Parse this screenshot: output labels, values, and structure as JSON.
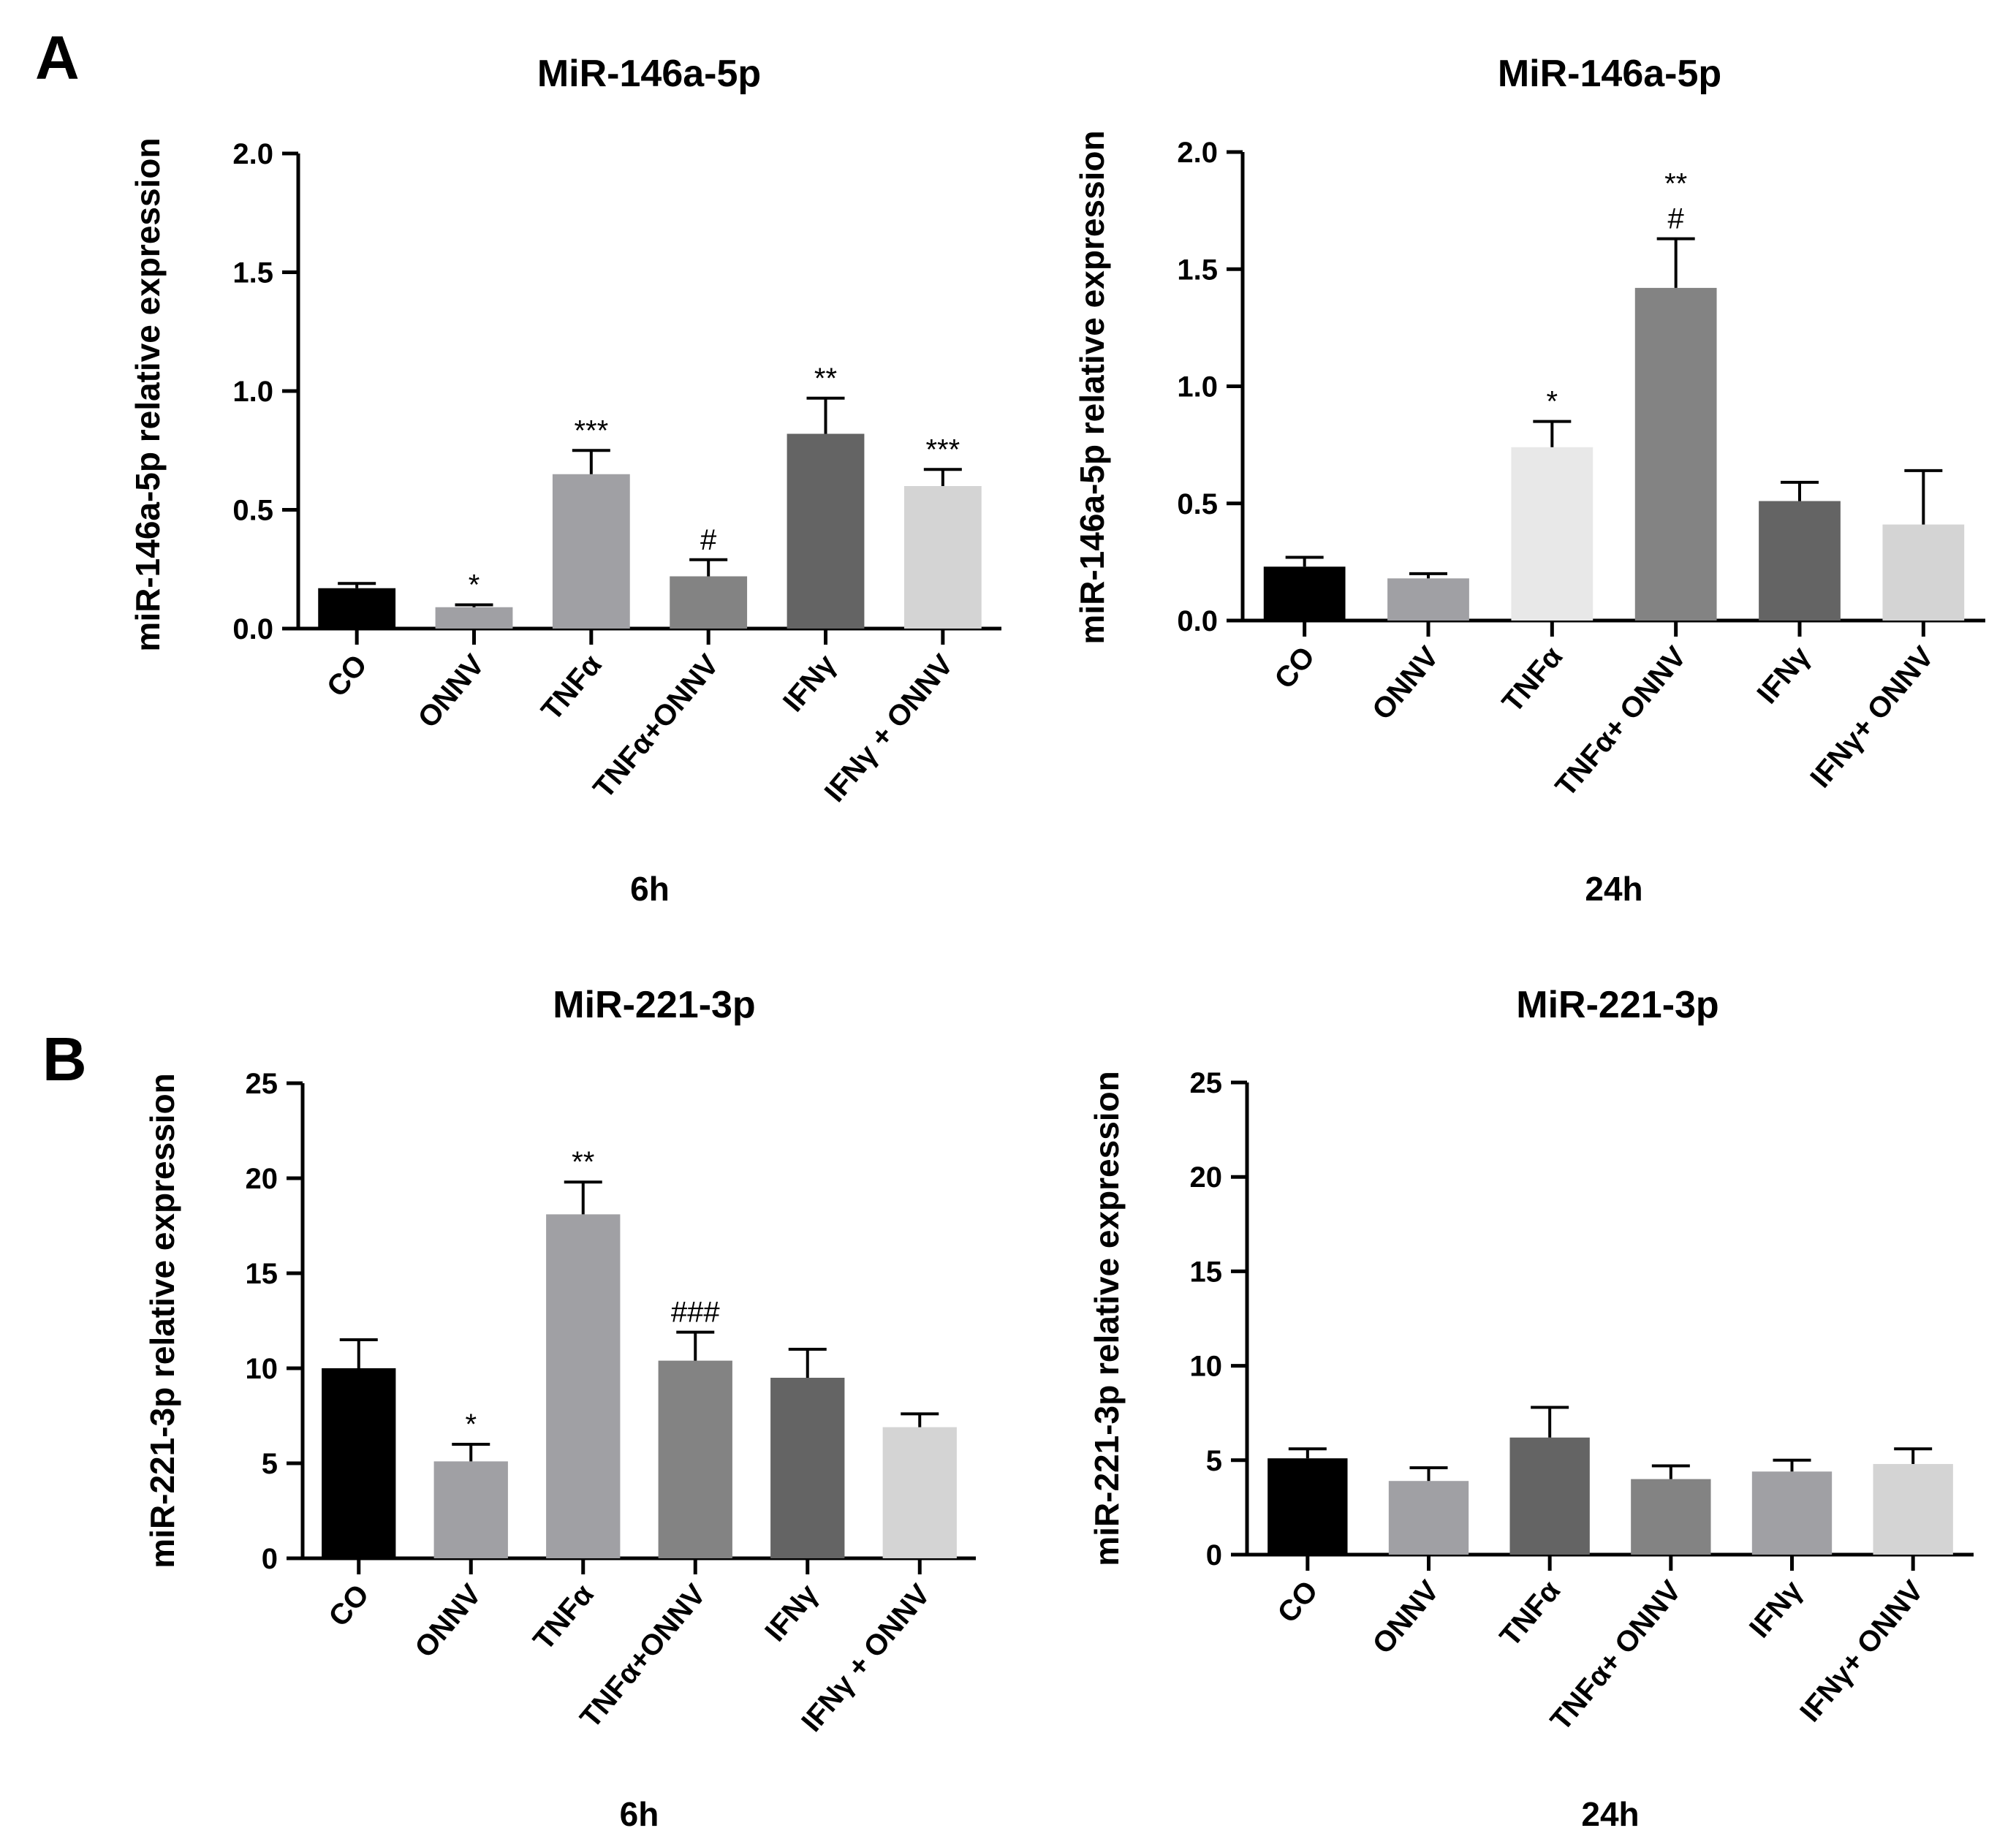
{
  "panels": [
    {
      "letter": "A"
    },
    {
      "letter": "B"
    }
  ],
  "colors": {
    "black": "#000000",
    "medium_gray": "#a0a0a4",
    "gray": "#838383",
    "dark_gray": "#646464",
    "light_gray": "#d4d4d4",
    "very_light_gray": "#e8e8e8"
  },
  "chart_data": [
    {
      "type": "bar",
      "panel": "A",
      "title": "MiR-146a-5p",
      "xlabel": "6h",
      "ylabel": "miR-146a-5p relative expression",
      "ylim": [
        0,
        2.0
      ],
      "yticks": [
        "0.0",
        "0.5",
        "1.0",
        "1.5",
        "2.0"
      ],
      "categories": [
        "CO",
        "ONNV",
        "TNFα",
        "TNFα+ONNV",
        "IFNγ",
        "IFNγ + ONNV"
      ],
      "values": [
        0.17,
        0.09,
        0.65,
        0.22,
        0.82,
        0.6
      ],
      "errors": [
        0.02,
        0.01,
        0.1,
        0.07,
        0.15,
        0.07
      ],
      "colors": [
        "#000000",
        "#a0a0a4",
        "#a0a0a4",
        "#838383",
        "#646464",
        "#d4d4d4"
      ],
      "annotations": [
        "",
        "*",
        "***",
        "#",
        "**",
        "***"
      ]
    },
    {
      "type": "bar",
      "panel": "A",
      "title": "MiR-146a-5p",
      "xlabel": "24h",
      "ylabel": "miR-146a-5p relative expression",
      "ylim": [
        0,
        2.0
      ],
      "yticks": [
        "0.0",
        "0.5",
        "1.0",
        "1.5",
        "2.0"
      ],
      "categories": [
        "CO",
        "ONNV",
        "TNFα",
        "TNFα+ ONNV",
        "IFNγ",
        "IFNγ+ ONNV"
      ],
      "values": [
        0.23,
        0.18,
        0.74,
        1.42,
        0.51,
        0.41
      ],
      "errors": [
        0.04,
        0.02,
        0.11,
        0.21,
        0.08,
        0.23
      ],
      "colors": [
        "#000000",
        "#a0a0a4",
        "#e8e8e8",
        "#838383",
        "#646464",
        "#d4d4d4"
      ],
      "annotations": [
        "",
        "",
        "*",
        "**\n#",
        "",
        ""
      ]
    },
    {
      "type": "bar",
      "panel": "B",
      "title": "MiR-221-3p",
      "xlabel": "6h",
      "ylabel": "miR-221-3p relative expression",
      "ylim": [
        0,
        25
      ],
      "yticks": [
        "0",
        "5",
        "10",
        "15",
        "20",
        "25"
      ],
      "categories": [
        "CO",
        "ONNV",
        "TNFα",
        "TNFα+ONNV",
        "IFNγ",
        "IFNγ + ONNV"
      ],
      "values": [
        10.0,
        5.1,
        18.1,
        10.4,
        9.5,
        6.9
      ],
      "errors": [
        1.5,
        0.9,
        1.7,
        1.5,
        1.5,
        0.7
      ],
      "colors": [
        "#000000",
        "#a0a0a4",
        "#a0a0a4",
        "#838383",
        "#646464",
        "#d4d4d4"
      ],
      "annotations": [
        "",
        "*",
        "**",
        "###",
        "",
        ""
      ]
    },
    {
      "type": "bar",
      "panel": "B",
      "title": "MiR-221-3p",
      "xlabel": "24h",
      "ylabel": "miR-221-3p relative expression",
      "ylim": [
        0,
        25
      ],
      "yticks": [
        "0",
        "5",
        "10",
        "15",
        "20",
        "25"
      ],
      "categories": [
        "CO",
        "ONNV",
        "TNFα",
        "TNFα+ ONNV",
        "IFNγ",
        "IFNγ+ ONNV"
      ],
      "values": [
        5.1,
        3.9,
        6.2,
        4.0,
        4.4,
        4.8
      ],
      "errors": [
        0.5,
        0.7,
        1.6,
        0.7,
        0.6,
        0.8
      ],
      "colors": [
        "#000000",
        "#a0a0a4",
        "#646464",
        "#838383",
        "#a0a0a4",
        "#d4d4d4"
      ],
      "annotations": [
        "",
        "",
        "",
        "",
        "",
        ""
      ]
    }
  ]
}
